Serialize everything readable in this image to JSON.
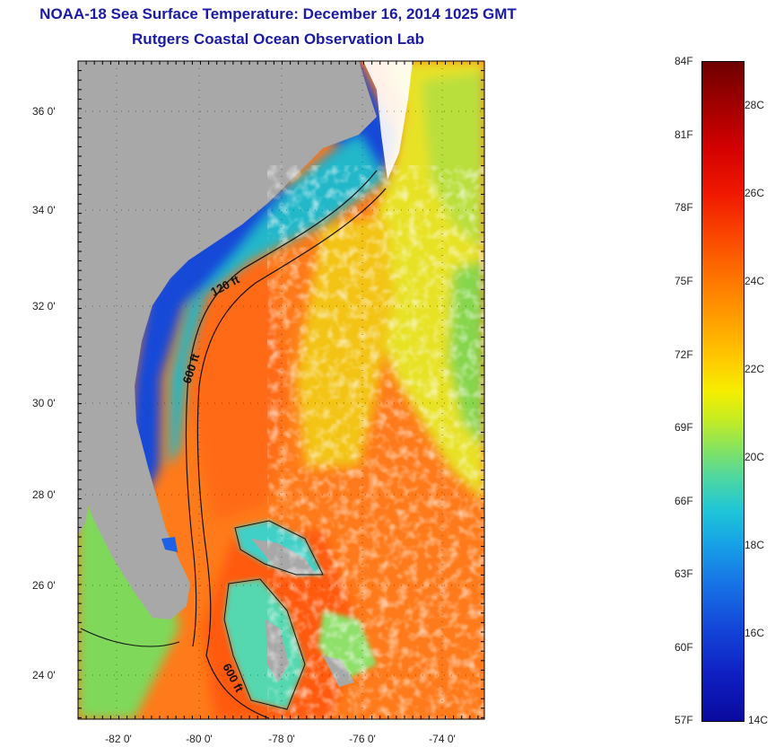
{
  "title": {
    "line1": "NOAA-18 Sea Surface Temperature:  December 16, 2014 1025 GMT",
    "line2": "Rutgers Coastal Ocean Observation Lab"
  },
  "map": {
    "lat_labels": [
      "36 0'",
      "34 0'",
      "32 0'",
      "30 0'",
      "28 0'",
      "26 0'",
      "24 0'"
    ],
    "lon_labels": [
      "-82 0'",
      "-80 0'",
      "-78 0'",
      "-76 0'",
      "-74 0'"
    ],
    "contour_labels": [
      "120 ft",
      "600 ft",
      "600 ft"
    ],
    "colors": {
      "land": "#a8a8a8",
      "cloud": "#ffffff",
      "warm": "#ff7a1a",
      "cool": "#1448d8"
    }
  },
  "colorbar": {
    "fahrenheit": [
      "84F",
      "81F",
      "78F",
      "75F",
      "72F",
      "69F",
      "66F",
      "63F",
      "60F",
      "57F"
    ],
    "celsius": [
      "28C",
      "26C",
      "24C",
      "22C",
      "20C",
      "18C",
      "16C",
      "14C"
    ]
  }
}
